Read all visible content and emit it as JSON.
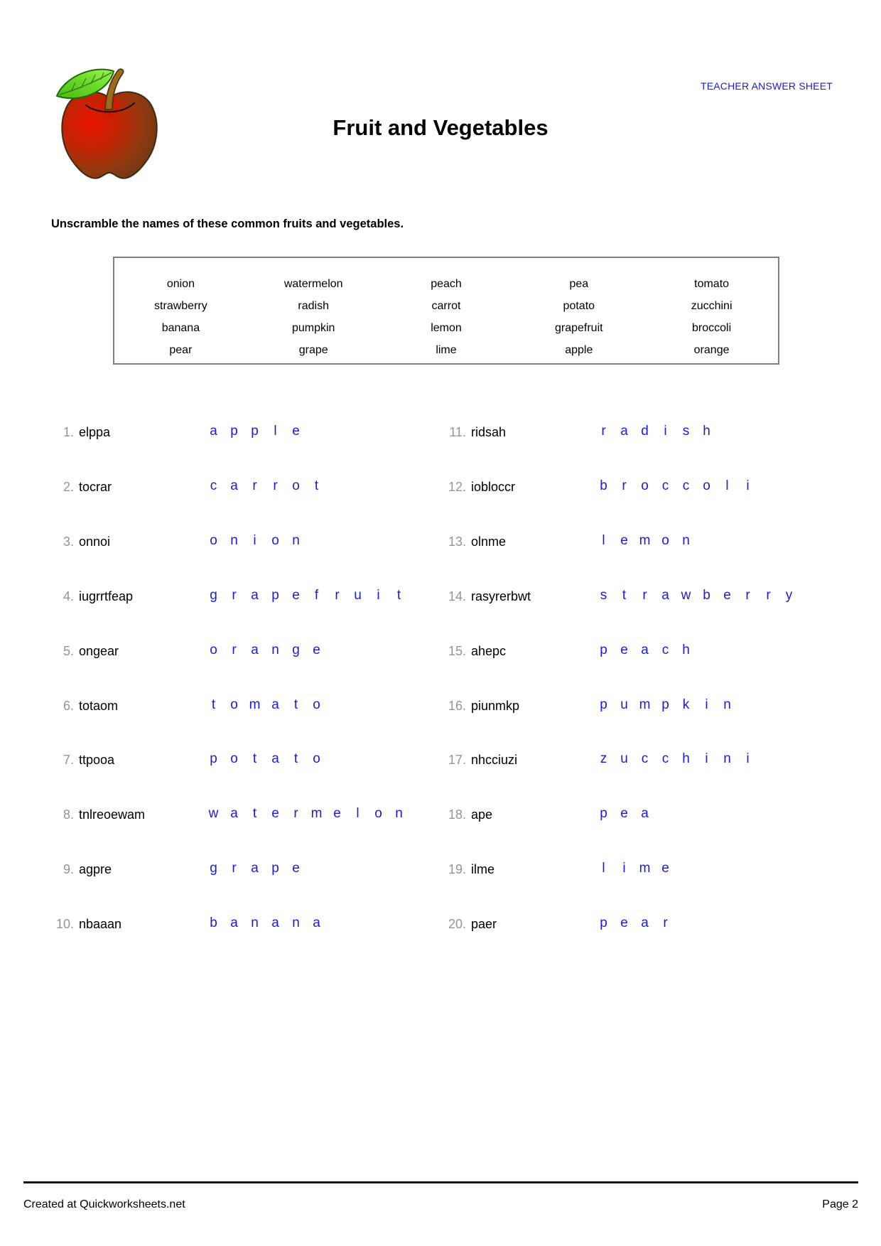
{
  "header": {
    "sheet_label": "TEACHER ANSWER SHEET",
    "title": "Fruit and Vegetables",
    "instruction": "Unscramble the names of these common fruits and vegetables."
  },
  "word_bank": {
    "rows": [
      [
        "onion",
        "watermelon",
        "peach",
        "pea",
        "tomato"
      ],
      [
        "strawberry",
        "radish",
        "carrot",
        "potato",
        "zucchini"
      ],
      [
        "banana",
        "pumpkin",
        "lemon",
        "grapefruit",
        "broccoli"
      ],
      [
        "pear",
        "grape",
        "lime",
        "apple",
        "orange"
      ]
    ]
  },
  "items": [
    {
      "number": "1.",
      "scrambled": "elppa",
      "answer": "apple"
    },
    {
      "number": "2.",
      "scrambled": "tocrar",
      "answer": "carrot"
    },
    {
      "number": "3.",
      "scrambled": "onnoi",
      "answer": "onion"
    },
    {
      "number": "4.",
      "scrambled": "iugrrtfeap",
      "answer": "grapefruit"
    },
    {
      "number": "5.",
      "scrambled": "ongear",
      "answer": "orange"
    },
    {
      "number": "6.",
      "scrambled": "totaom",
      "answer": "tomato"
    },
    {
      "number": "7.",
      "scrambled": "ttpooa",
      "answer": "potato"
    },
    {
      "number": "8.",
      "scrambled": "tnlreoewam",
      "answer": "watermelon"
    },
    {
      "number": "9.",
      "scrambled": "agpre",
      "answer": "grape"
    },
    {
      "number": "10.",
      "scrambled": "nbaaan",
      "answer": "banana"
    },
    {
      "number": "11.",
      "scrambled": "ridsah",
      "answer": "radish"
    },
    {
      "number": "12.",
      "scrambled": "iobloccr",
      "answer": "broccoli"
    },
    {
      "number": "13.",
      "scrambled": "olnme",
      "answer": "lemon"
    },
    {
      "number": "14.",
      "scrambled": "rasyrerbwt",
      "answer": "strawberry"
    },
    {
      "number": "15.",
      "scrambled": "ahepc",
      "answer": "peach"
    },
    {
      "number": "16.",
      "scrambled": "piunmkp",
      "answer": "pumpkin"
    },
    {
      "number": "17.",
      "scrambled": "nhcciuzi",
      "answer": "zucchini"
    },
    {
      "number": "18.",
      "scrambled": "ape",
      "answer": "pea"
    },
    {
      "number": "19.",
      "scrambled": "ilme",
      "answer": "lime"
    },
    {
      "number": "20.",
      "scrambled": "paer",
      "answer": "pear"
    }
  ],
  "footer": {
    "credit": "Created at Quickworksheets.net",
    "page": "Page 2"
  },
  "colors": {
    "answer_blue": "#1a1ae0",
    "label_blue": "#1a1ae0",
    "number_gray": "#949494",
    "apple_red": "#d81600",
    "apple_brown": "#6b3a1a",
    "leaf_green": "#5fcb1e"
  }
}
